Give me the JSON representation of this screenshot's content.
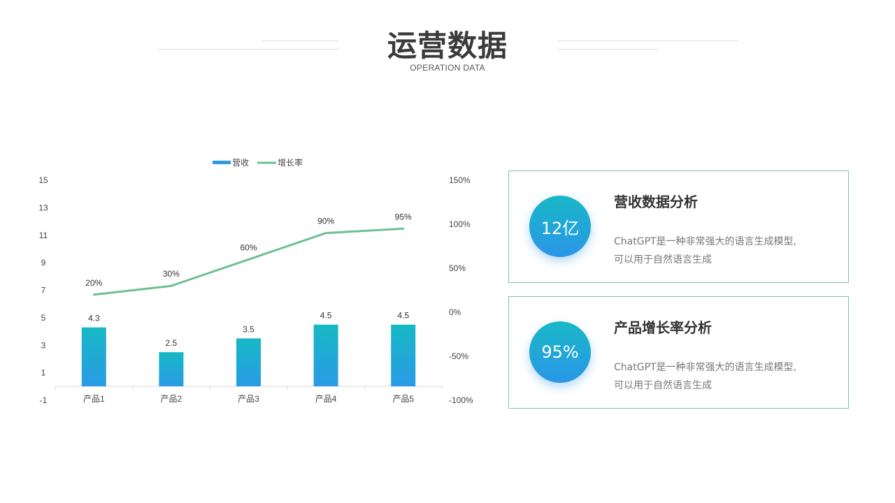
{
  "header": {
    "title": "运营数据",
    "subtitle": "OPERATION DATA"
  },
  "colors": {
    "bar_top": "#17b8c4",
    "bar_bottom": "#2a9be6",
    "line": "#6cc192",
    "card_border": "#7dc5a0"
  },
  "chart_data": {
    "type": "bar",
    "categories": [
      "产品1",
      "产品2",
      "产品3",
      "产品4",
      "产品5"
    ],
    "series": [
      {
        "name": "营收",
        "type": "bar",
        "axis": "left",
        "values": [
          4.3,
          2.5,
          3.5,
          4.5,
          4.5
        ],
        "labels": [
          "4.3",
          "2.5",
          "3.5",
          "4.5",
          "4.5"
        ]
      },
      {
        "name": "增长率",
        "type": "line",
        "axis": "right",
        "values": [
          20,
          30,
          60,
          90,
          95
        ],
        "labels": [
          "20%",
          "30%",
          "60%",
          "90%",
          "95%"
        ]
      }
    ],
    "y_left": {
      "ticks": [
        "15",
        "13",
        "11",
        "9",
        "7",
        "5",
        "3",
        "1",
        "-1"
      ],
      "ylim": [
        -1,
        15
      ]
    },
    "y_right": {
      "ticks": [
        "150%",
        "100%",
        "50%",
        "0%",
        "-50%",
        "-100%"
      ],
      "ylim": [
        -100,
        150
      ]
    },
    "legend": "top-center",
    "grid": false
  },
  "cards": [
    {
      "value": "12亿",
      "title": "营收数据分析",
      "desc_line1": "ChatGPT是一种非常强大的语言生成模型,",
      "desc_line2": "可以用于自然语言生成"
    },
    {
      "value": "95%",
      "title": "产品增长率分析",
      "desc_line1": "ChatGPT是一种非常强大的语言生成模型,",
      "desc_line2": "可以用于自然语言生成"
    }
  ]
}
